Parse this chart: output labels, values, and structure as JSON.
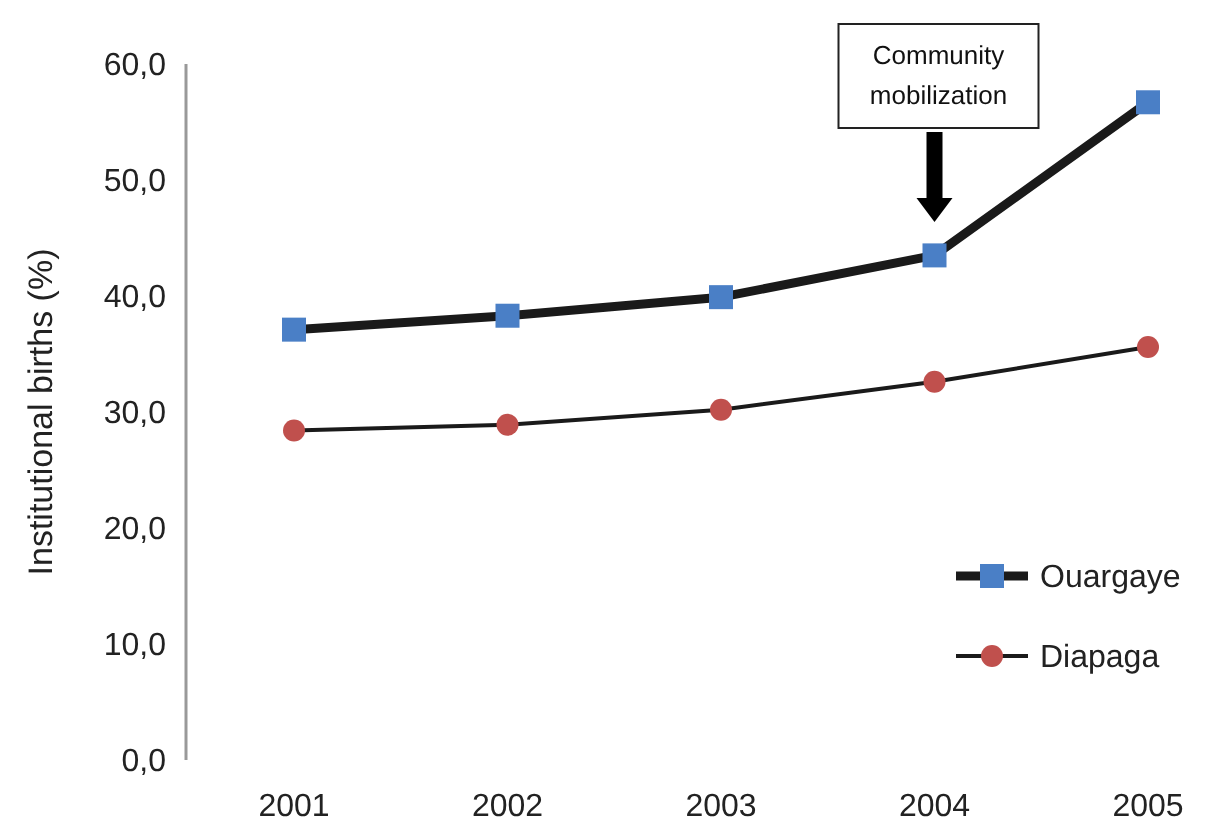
{
  "chart_data": {
    "type": "line",
    "ylabel": "Institutional births (%)",
    "categories": [
      "2001",
      "2002",
      "2003",
      "2004",
      "2005"
    ],
    "series": [
      {
        "name": "Ouargaye",
        "color": "#4a7fc6",
        "marker": "square",
        "values": [
          37.1,
          38.3,
          39.9,
          43.5,
          56.7
        ]
      },
      {
        "name": "Diapaga",
        "color": "#c0504d",
        "marker": "circle",
        "values": [
          28.4,
          28.9,
          30.2,
          32.6,
          35.6
        ]
      }
    ],
    "ylim": [
      0,
      60
    ],
    "yticks": [
      {
        "value": 0,
        "label": "0,0"
      },
      {
        "value": 10,
        "label": "10,0"
      },
      {
        "value": 20,
        "label": "20,0"
      },
      {
        "value": 30,
        "label": "30,0"
      },
      {
        "value": 40,
        "label": "40,0"
      },
      {
        "value": 50,
        "label": "50,0"
      },
      {
        "value": 60,
        "label": "60,0"
      }
    ],
    "annotations": [
      "Community mobilization"
    ],
    "grid": false,
    "legend": "bottom right"
  }
}
